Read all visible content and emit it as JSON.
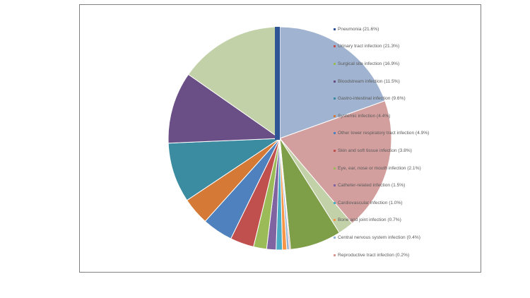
{
  "chart_data": {
    "type": "pie",
    "title": "",
    "legend_position": "right",
    "slices": [
      {
        "label": "Pneumonia (21.6%)",
        "value": 21.6,
        "color": "#a0b3d0",
        "marker_color": "#2f5597"
      },
      {
        "label": "Urinary tract infection (21.3%)",
        "value": 21.3,
        "color": "#d39f9e",
        "marker_color": "#c0504d"
      },
      {
        "label": "Surgical site infection (16.9%)",
        "value": 16.9,
        "color": "#c3d1a8",
        "marker_color": "#9bbb59"
      },
      {
        "label": "Bloodstream infection (11.5%)",
        "value": 11.5,
        "color": "#6a4f86",
        "marker_color": "#6a4f86"
      },
      {
        "label": "Gastro-intestinal infection (9.6%)",
        "value": 9.6,
        "color": "#3b8ca1",
        "marker_color": "#3b8ca1"
      },
      {
        "label": "Systemic infection (4.4%)",
        "value": 4.4,
        "color": "#d47a36",
        "marker_color": "#d47a36"
      },
      {
        "label": "Other lower respiratory tract infection (4.9%)",
        "value": 4.9,
        "color": "#4e81bd",
        "marker_color": "#4e81bd"
      },
      {
        "label": "Skin and soft tissue infection (3.8%)",
        "value": 3.8,
        "color": "#c0504d",
        "marker_color": "#c0504d"
      },
      {
        "label": "Eye, ear, nose or mouth infection (2.1%)",
        "value": 2.1,
        "color": "#9bbb59",
        "marker_color": "#9bbb59"
      },
      {
        "label": "Catheter-related infection (1.5%)",
        "value": 1.5,
        "color": "#8064a2",
        "marker_color": "#8064a2"
      },
      {
        "label": "Cardiovascular infection (1.0%)",
        "value": 1.0,
        "color": "#4bacc6",
        "marker_color": "#4bacc6"
      },
      {
        "label": "Bone and joint infection (0.7%)",
        "value": 0.7,
        "color": "#f79646",
        "marker_color": "#f79646"
      },
      {
        "label": "Central nervous system infection (0.4%)",
        "value": 0.4,
        "color": "#95b3d7",
        "marker_color": "#95b3d7"
      },
      {
        "label": "Reproductive tract infection (0.2%)",
        "value": 0.2,
        "color": "#d99694",
        "marker_color": "#d99694"
      }
    ],
    "extra_segments": [
      {
        "value": 2.5,
        "color": "#c3d1a8"
      },
      {
        "value": 8.2,
        "color": "#7f9e48"
      }
    ]
  }
}
